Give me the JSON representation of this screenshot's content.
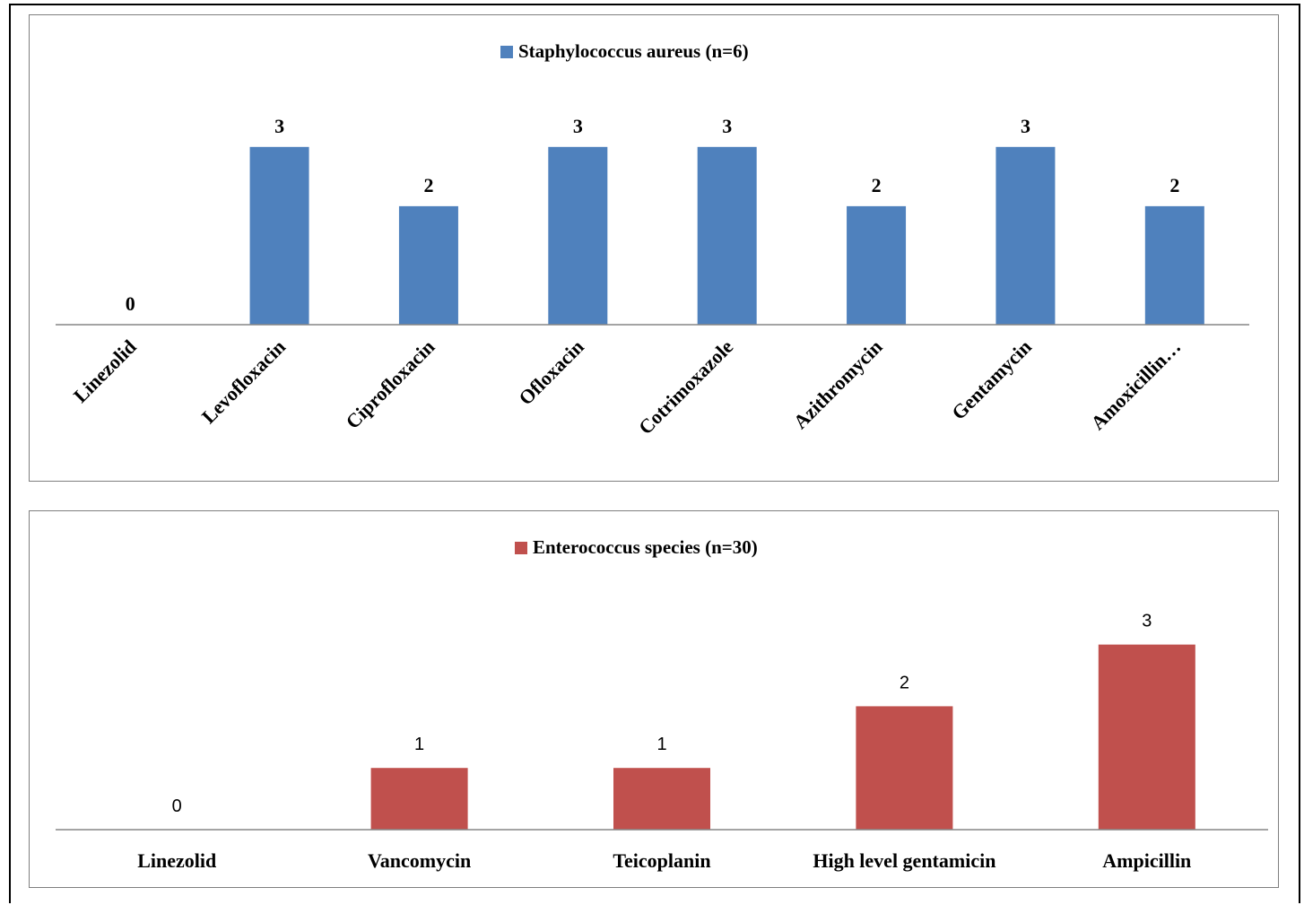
{
  "colors": {
    "series1": "#4f81bd",
    "series2": "#c0504d",
    "axis": "#868686",
    "border": "#7f7f7f"
  },
  "chart_data": [
    {
      "type": "bar",
      "title": "",
      "xlabel": "",
      "ylabel": "",
      "legend_position": "top",
      "grid": false,
      "categories": [
        "Linezolid",
        "Levofloxacin",
        "Ciprofloxacin",
        "Ofloxacin",
        "Cotrimoxazole",
        "Azithromycin",
        "Gentamycin",
        "Amoxicillin…"
      ],
      "series": [
        {
          "name": "Staphylococcus aureus (n=6)",
          "values": [
            0,
            3,
            2,
            3,
            3,
            2,
            3,
            2
          ]
        }
      ],
      "ylim": [
        0,
        3.3
      ]
    },
    {
      "type": "bar",
      "title": "",
      "xlabel": "",
      "ylabel": "",
      "legend_position": "top",
      "grid": false,
      "categories": [
        "Linezolid",
        "Vancomycin",
        "Teicoplanin",
        "High level gentamicin",
        "Ampicillin"
      ],
      "series": [
        {
          "name": "Enterococcus species (n=30)",
          "values": [
            0,
            1,
            1,
            2,
            3
          ]
        }
      ],
      "ylim": [
        0,
        3.3
      ]
    }
  ]
}
